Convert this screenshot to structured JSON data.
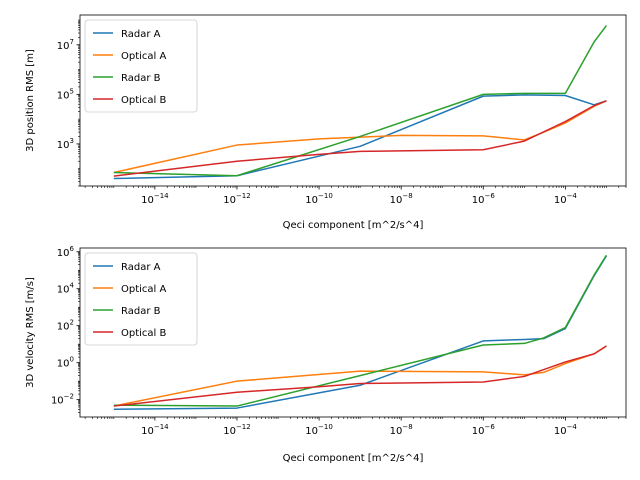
{
  "chart_data": [
    {
      "type": "line",
      "xlabel": "Qeci component [m^2/s^4]",
      "ylabel": "3D position RMS [m]",
      "xscale": "log",
      "yscale": "log",
      "xlim": [
        1.5e-16,
        0.003
      ],
      "ylim": [
        20,
        160000000.0
      ],
      "xticks": [
        {
          "exp": "-14"
        },
        {
          "exp": "-12"
        },
        {
          "exp": "-10"
        },
        {
          "exp": "-8"
        },
        {
          "exp": "-6"
        },
        {
          "exp": "-4"
        }
      ],
      "yticks": [
        {
          "exp": "3"
        },
        {
          "exp": "5"
        },
        {
          "exp": "7"
        }
      ],
      "grid": false,
      "legend_position": "top-left",
      "series": [
        {
          "name": "Radar A",
          "color": "#1f77b4",
          "x": [
            1e-15,
            1e-12,
            1e-09,
            1e-06,
            1e-05,
            0.0001,
            0.0005,
            0.001
          ],
          "y": [
            40,
            52,
            800,
            85000,
            95000,
            90000,
            38000,
            55000
          ]
        },
        {
          "name": "Optical A",
          "color": "#ff7f0e",
          "x": [
            1e-15,
            1e-12,
            1e-10,
            1e-08,
            1e-06,
            1e-05,
            3e-05,
            0.0001,
            0.0005,
            0.001
          ],
          "y": [
            70,
            900,
            1600,
            2200,
            2100,
            1450,
            3000,
            7000,
            33000,
            55000
          ]
        },
        {
          "name": "Radar B",
          "color": "#2ca02c",
          "x": [
            1e-15,
            1e-12,
            1e-09,
            1e-06,
            1e-05,
            0.0001,
            0.0005,
            0.001
          ],
          "y": [
            70,
            52,
            2000,
            100000,
            110000,
            110000,
            13000000.0,
            60000000.0
          ]
        },
        {
          "name": "Optical B",
          "color": "#d62728",
          "x": [
            1e-15,
            1e-12,
            1e-10,
            1e-09,
            1e-06,
            1e-05,
            0.0001,
            0.0005,
            0.001
          ],
          "y": [
            50,
            200,
            380,
            500,
            580,
            1300,
            8000,
            35000,
            55000
          ]
        }
      ]
    },
    {
      "type": "line",
      "xlabel": "Qeci component [m^2/s^4]",
      "ylabel": "3D velocity RMS [m/s]",
      "xscale": "log",
      "yscale": "log",
      "xlim": [
        1.5e-16,
        0.003
      ],
      "ylim": [
        0.00115,
        1600000.0
      ],
      "xticks": [
        {
          "exp": "-14"
        },
        {
          "exp": "-12"
        },
        {
          "exp": "-10"
        },
        {
          "exp": "-8"
        },
        {
          "exp": "-6"
        },
        {
          "exp": "-4"
        }
      ],
      "yticks": [
        {
          "exp": "-2"
        },
        {
          "exp": "0"
        },
        {
          "exp": "2"
        },
        {
          "exp": "4"
        },
        {
          "exp": "6"
        }
      ],
      "grid": false,
      "legend_position": "top-left",
      "series": [
        {
          "name": "Radar A",
          "color": "#1f77b4",
          "x": [
            1e-15,
            1e-12,
            1e-09,
            1e-06,
            1e-05,
            3e-05,
            0.0001,
            0.0005,
            0.001
          ],
          "y": [
            0.003,
            0.0035,
            0.06,
            15,
            18,
            20,
            70,
            50000,
            600000
          ]
        },
        {
          "name": "Optical A",
          "color": "#ff7f0e",
          "x": [
            1e-15,
            1e-12,
            1e-09,
            1e-06,
            1e-05,
            3e-05,
            0.0001,
            0.0005,
            0.001
          ],
          "y": [
            0.0045,
            0.1,
            0.35,
            0.32,
            0.22,
            0.3,
            0.9,
            3,
            8
          ]
        },
        {
          "name": "Radar B",
          "color": "#2ca02c",
          "x": [
            1e-15,
            1e-12,
            1e-09,
            1e-06,
            1e-05,
            3e-05,
            0.0001,
            0.0005,
            0.001
          ],
          "y": [
            0.005,
            0.0045,
            0.2,
            9,
            11,
            22,
            80,
            55000,
            650000
          ]
        },
        {
          "name": "Optical B",
          "color": "#d62728",
          "x": [
            1e-15,
            1e-12,
            1e-10,
            1e-09,
            1e-06,
            1e-05,
            0.0001,
            0.0005,
            0.001
          ],
          "y": [
            0.0045,
            0.025,
            0.05,
            0.075,
            0.09,
            0.18,
            1.1,
            3,
            8
          ]
        }
      ]
    }
  ]
}
